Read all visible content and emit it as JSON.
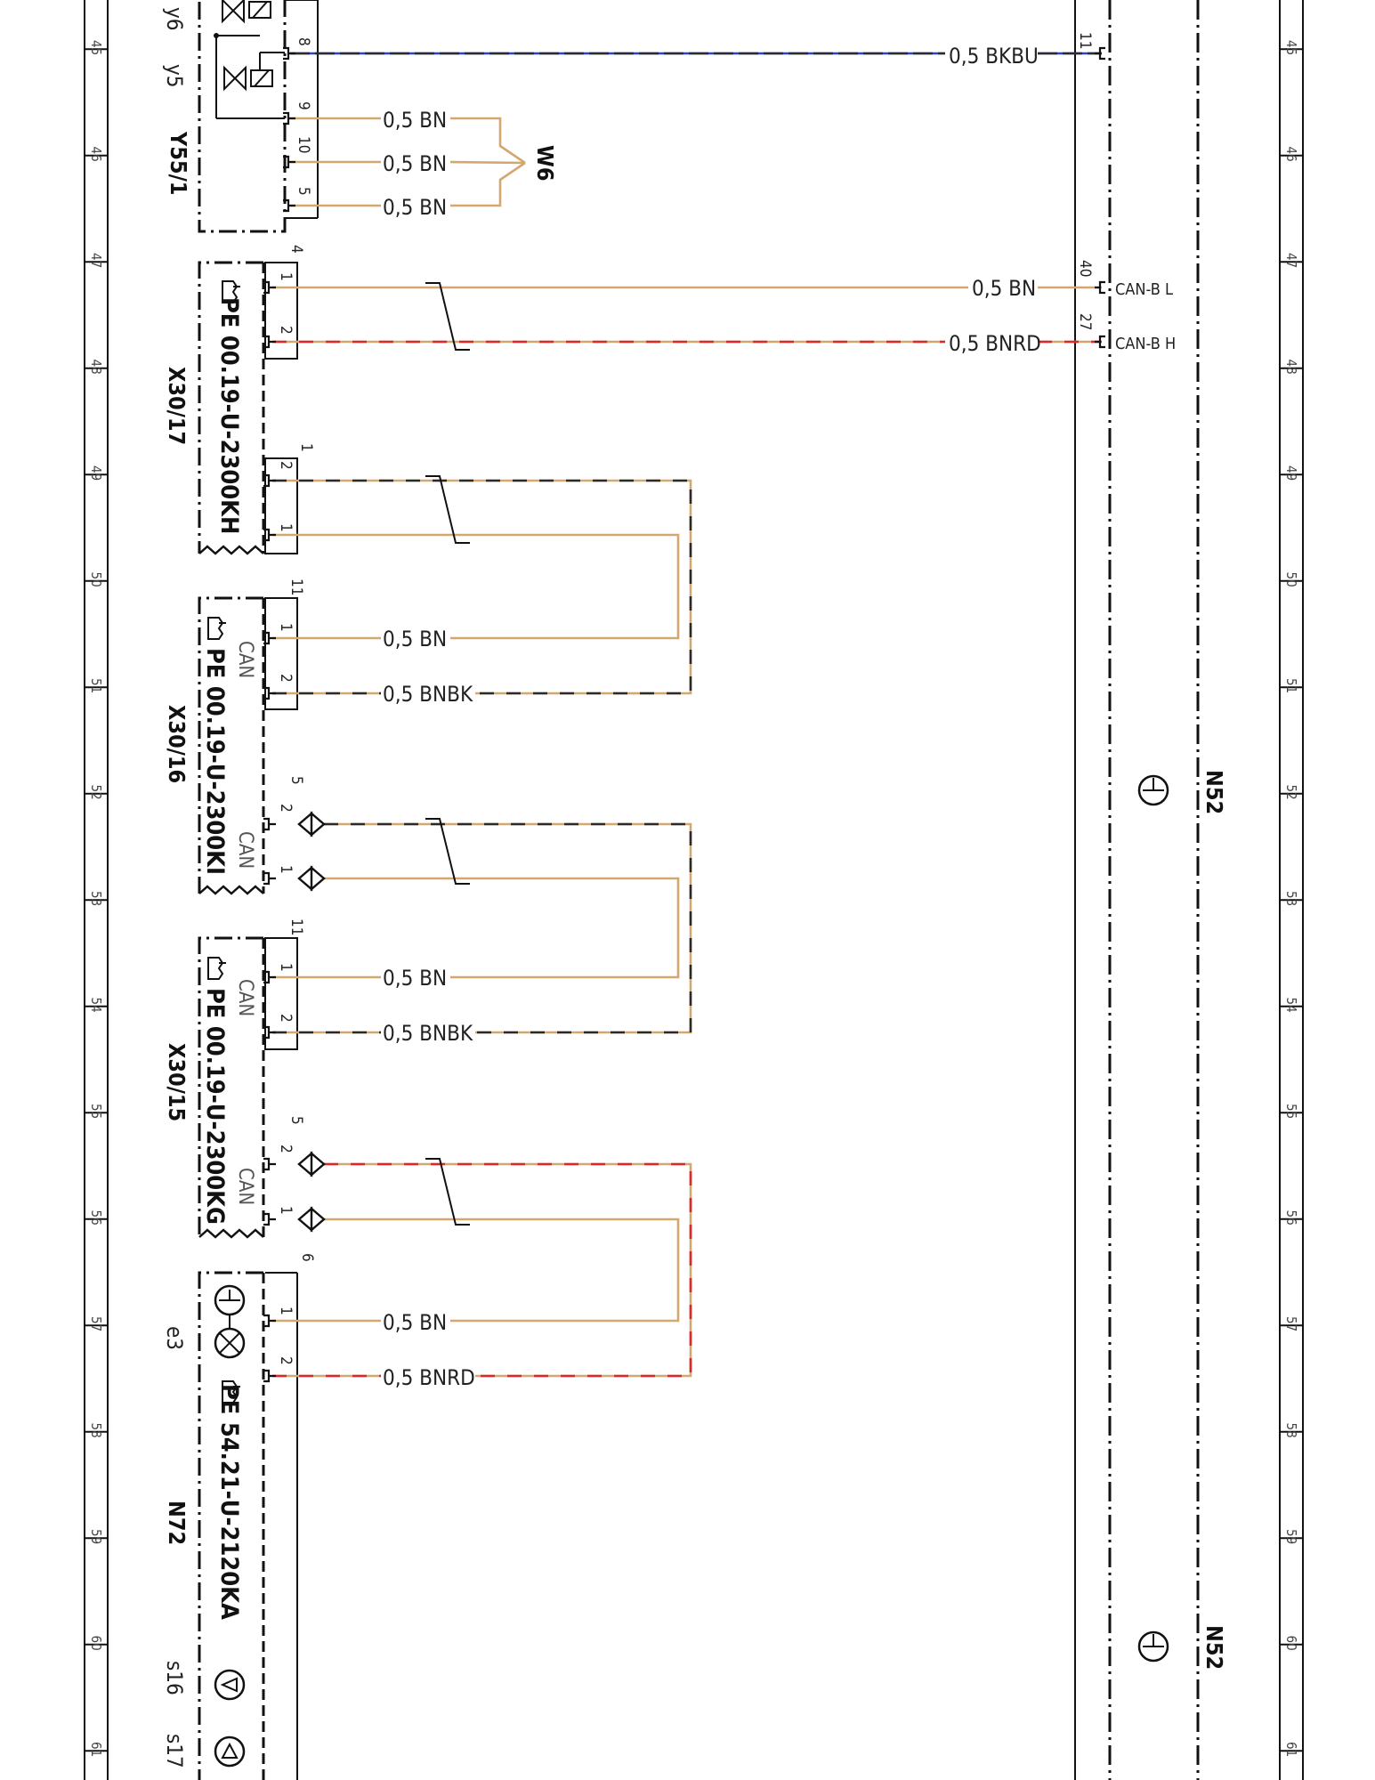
{
  "colors": {
    "bn": "#d2a870",
    "bk": "#2a2a2a",
    "bu": "#2a44c8",
    "rd": "#e0262a",
    "frame": "#111111"
  },
  "rail_rows": [
    "45",
    "46",
    "47",
    "48",
    "49",
    "50",
    "51",
    "52",
    "53",
    "54",
    "55",
    "56",
    "57",
    "58",
    "59",
    "60",
    "61"
  ],
  "top_partial": "y6",
  "y55_1": {
    "name": "Y55/1",
    "valves": [
      "y5"
    ],
    "pins": {
      "p8": "8",
      "p9": "9",
      "p10": "10",
      "p5": "5"
    },
    "wires": {
      "w8": "0,5 BKBU",
      "w9": "0,5 BN",
      "w10": "0,5 BN",
      "w5": "0,5 BN"
    },
    "splice": "W6"
  },
  "x30_17": {
    "name": "X30/17",
    "pe": "PE 00.19-U-2300KH",
    "group_top": "4",
    "group_bottom": "1",
    "pins": {
      "p1": "1",
      "p2": "2",
      "p2b": "2",
      "p1b": "1"
    },
    "wires": {
      "w1": "0,5 BN",
      "w2": "0,5 BNRD"
    }
  },
  "x30_16": {
    "name": "X30/16",
    "pe": "PE 00.19-U-2300KI",
    "can": "CAN",
    "can2": "CAN",
    "group_top": "11",
    "group_bottom": "5",
    "pins": {
      "p1": "1",
      "p2": "2",
      "p2b": "2",
      "p1b": "1"
    },
    "wires": {
      "w1": "0,5 BN",
      "w2": "0,5 BNBK"
    }
  },
  "x30_15": {
    "name": "X30/15",
    "pe": "PE 00.19-U-2300KG",
    "can": "CAN",
    "can2": "CAN",
    "group_top": "11",
    "group_bottom": "5",
    "pins": {
      "p1": "1",
      "p2": "2",
      "p2b": "2",
      "p1b": "1"
    },
    "wires": {
      "w1": "0,5 BN",
      "w2": "0,5 BNBK"
    }
  },
  "n72": {
    "name": "N72",
    "pe": "PE 54.21-U-2120KA",
    "sub_e3": "e3",
    "sub_s16": "s16",
    "sub_s17": "s17",
    "group_top": "6",
    "pins": {
      "p1": "1",
      "p2": "2"
    },
    "wires": {
      "w1": "0,5 BN",
      "w2": "0,5 BNRD"
    }
  },
  "n52": {
    "name": "N52",
    "name2": "N52",
    "pins": {
      "p11": "11",
      "p40": "40",
      "p27": "27"
    },
    "can_l": "CAN-B L",
    "can_h": "CAN-B H"
  }
}
